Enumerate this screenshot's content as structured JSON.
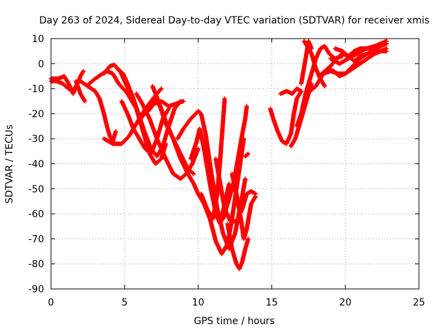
{
  "chart_data": {
    "type": "scatter",
    "title": "Day 263 of 2024, Sidereal Day-to-day VTEC variation (SDTVAR) for receiver xmis",
    "xlabel": "GPS time / hours",
    "ylabel": "SDTVAR / TECUs",
    "xlim": [
      0,
      25
    ],
    "ylim": [
      -90,
      10
    ],
    "xticks": [
      0,
      5,
      10,
      15,
      20,
      25
    ],
    "yticks": [
      10,
      0,
      -10,
      -20,
      -30,
      -40,
      -50,
      -60,
      -70,
      -80,
      -90
    ],
    "grid": true,
    "marker": "+",
    "color": "#ff0000",
    "series": [
      {
        "values": [
          [
            0.0,
            -7
          ],
          [
            0.4,
            -7
          ],
          [
            0.8,
            -8
          ],
          [
            1.2,
            -10
          ],
          [
            1.5,
            -11
          ],
          [
            1.8,
            -8
          ],
          [
            2.0,
            -5
          ],
          [
            2.2,
            -3
          ]
        ]
      },
      {
        "values": [
          [
            0.0,
            -6
          ],
          [
            0.5,
            -6
          ],
          [
            0.9,
            -5
          ],
          [
            1.2,
            -8
          ],
          [
            1.5,
            -12
          ],
          [
            1.7,
            -9
          ]
        ]
      },
      {
        "values": [
          [
            1.7,
            -7
          ],
          [
            2.0,
            -12
          ],
          [
            2.3,
            -15
          ]
        ]
      },
      {
        "values": [
          [
            2.0,
            -7
          ],
          [
            2.5,
            -9
          ],
          [
            3.0,
            -11
          ],
          [
            3.3,
            -14
          ],
          [
            3.6,
            -20
          ],
          [
            3.8,
            -25
          ],
          [
            4.0,
            -29
          ],
          [
            4.2,
            -31
          ],
          [
            4.4,
            -27
          ]
        ]
      },
      {
        "values": [
          [
            2.6,
            -8
          ],
          [
            3.0,
            -6
          ],
          [
            3.5,
            -4
          ],
          [
            3.8,
            -3
          ],
          [
            4.2,
            -4
          ],
          [
            4.6,
            -8
          ],
          [
            5.2,
            -12
          ],
          [
            5.8,
            -18
          ],
          [
            6.3,
            -28
          ],
          [
            6.7,
            -36
          ],
          [
            7.1,
            -40
          ],
          [
            7.5,
            -38
          ],
          [
            7.8,
            -32
          ]
        ]
      },
      {
        "values": [
          [
            3.6,
            -30
          ],
          [
            4.2,
            -32
          ],
          [
            4.8,
            -32
          ],
          [
            5.3,
            -29
          ],
          [
            5.8,
            -24
          ],
          [
            6.3,
            -19
          ],
          [
            6.8,
            -15
          ],
          [
            7.2,
            -12
          ],
          [
            7.5,
            -10
          ]
        ]
      },
      {
        "values": [
          [
            3.6,
            -4
          ],
          [
            4.0,
            -1
          ],
          [
            4.3,
            -0.5
          ],
          [
            4.7,
            -3
          ],
          [
            5.0,
            -7
          ],
          [
            5.4,
            -12
          ]
        ]
      },
      {
        "values": [
          [
            4.5,
            -2
          ],
          [
            4.9,
            -4
          ],
          [
            5.2,
            -8
          ],
          [
            5.6,
            -14
          ],
          [
            6.0,
            -21
          ],
          [
            6.4,
            -28
          ],
          [
            6.8,
            -34
          ],
          [
            7.2,
            -37
          ],
          [
            7.6,
            -33
          ],
          [
            8.0,
            -25
          ],
          [
            8.4,
            -18
          ],
          [
            8.8,
            -15
          ]
        ]
      },
      {
        "values": [
          [
            4.8,
            -15
          ],
          [
            5.2,
            -20
          ],
          [
            5.6,
            -26
          ],
          [
            6.0,
            -30
          ],
          [
            6.4,
            -34
          ],
          [
            6.8,
            -36
          ],
          [
            7.2,
            -30
          ],
          [
            7.6,
            -22
          ],
          [
            8.0,
            -18
          ]
        ]
      },
      {
        "values": [
          [
            5.8,
            -12
          ],
          [
            6.2,
            -16
          ],
          [
            6.7,
            -22
          ],
          [
            7.2,
            -30
          ],
          [
            7.8,
            -38
          ],
          [
            8.3,
            -44
          ],
          [
            8.8,
            -46
          ],
          [
            9.2,
            -44
          ],
          [
            9.6,
            -40
          ],
          [
            10.0,
            -34
          ]
        ]
      },
      {
        "values": [
          [
            6.1,
            -22
          ],
          [
            6.6,
            -18
          ],
          [
            7.0,
            -14
          ],
          [
            7.4,
            -17
          ],
          [
            7.8,
            -24
          ],
          [
            8.3,
            -30
          ],
          [
            8.8,
            -36
          ],
          [
            9.3,
            -42
          ],
          [
            9.7,
            -44
          ]
        ]
      },
      {
        "values": [
          [
            6.9,
            -9
          ],
          [
            7.3,
            -15
          ],
          [
            7.8,
            -23
          ],
          [
            8.3,
            -30
          ],
          [
            8.8,
            -38
          ],
          [
            9.3,
            -44
          ],
          [
            9.7,
            -48
          ],
          [
            10.0,
            -52
          ],
          [
            10.4,
            -56
          ],
          [
            10.8,
            -62
          ],
          [
            11.2,
            -71
          ],
          [
            11.6,
            -76
          ],
          [
            12.0,
            -72
          ],
          [
            12.3,
            -62
          ],
          [
            12.6,
            -50
          ],
          [
            12.9,
            -38
          ],
          [
            13.1,
            -30
          ]
        ]
      },
      {
        "values": [
          [
            6.6,
            -19
          ],
          [
            7.0,
            -16
          ],
          [
            7.5,
            -15
          ],
          [
            8.0,
            -17
          ],
          [
            8.5,
            -16
          ],
          [
            9.0,
            -15
          ]
        ]
      },
      {
        "values": [
          [
            8.6,
            -30
          ],
          [
            9.0,
            -26
          ],
          [
            9.5,
            -22
          ],
          [
            10.0,
            -19
          ],
          [
            10.2,
            -20
          ],
          [
            10.5,
            -28
          ],
          [
            10.9,
            -44
          ],
          [
            11.3,
            -58
          ],
          [
            11.7,
            -68
          ],
          [
            12.1,
            -74
          ],
          [
            12.5,
            -68
          ],
          [
            12.9,
            -56
          ],
          [
            13.2,
            -46
          ]
        ]
      },
      {
        "values": [
          [
            9.5,
            -38
          ],
          [
            9.9,
            -31
          ],
          [
            10.1,
            -26
          ],
          [
            10.4,
            -34
          ],
          [
            10.8,
            -48
          ],
          [
            11.2,
            -60
          ],
          [
            11.5,
            -64
          ],
          [
            11.8,
            -56
          ],
          [
            12.1,
            -48
          ]
        ]
      },
      {
        "values": [
          [
            10.2,
            -52
          ],
          [
            10.6,
            -58
          ],
          [
            11.0,
            -62
          ],
          [
            11.3,
            -52
          ],
          [
            11.5,
            -38
          ],
          [
            11.7,
            -22
          ],
          [
            11.8,
            -14
          ]
        ]
      },
      {
        "values": [
          [
            11.2,
            -38
          ],
          [
            11.5,
            -48
          ],
          [
            11.8,
            -58
          ],
          [
            12.2,
            -63
          ],
          [
            12.6,
            -63
          ],
          [
            13.0,
            -58
          ],
          [
            13.3,
            -52
          ],
          [
            13.6,
            -51
          ],
          [
            13.9,
            -52
          ]
        ]
      },
      {
        "values": [
          [
            11.7,
            -62
          ],
          [
            12.0,
            -56
          ],
          [
            12.4,
            -48
          ],
          [
            12.7,
            -38
          ],
          [
            13.0,
            -28
          ],
          [
            13.2,
            -22
          ],
          [
            13.3,
            -17
          ]
        ]
      },
      {
        "values": [
          [
            12.3,
            -44
          ],
          [
            12.6,
            -52
          ],
          [
            12.9,
            -62
          ],
          [
            13.1,
            -70
          ],
          [
            13.3,
            -66
          ],
          [
            13.6,
            -56
          ],
          [
            13.9,
            -53
          ]
        ]
      },
      {
        "values": [
          [
            12.0,
            -64
          ],
          [
            12.3,
            -74
          ],
          [
            12.6,
            -80
          ],
          [
            12.8,
            -82
          ],
          [
            13.0,
            -79
          ],
          [
            13.2,
            -74
          ],
          [
            13.4,
            -70
          ]
        ]
      },
      {
        "values": [
          [
            13.2,
            -37
          ],
          [
            13.4,
            -36
          ]
        ]
      },
      {
        "values": [
          [
            14.9,
            -18
          ],
          [
            15.1,
            -22
          ],
          [
            15.4,
            -27
          ],
          [
            15.7,
            -31
          ],
          [
            16.0,
            -32
          ],
          [
            16.3,
            -28
          ],
          [
            16.5,
            -20
          ],
          [
            16.7,
            -14
          ],
          [
            17.0,
            -11
          ]
        ]
      },
      {
        "values": [
          [
            16.3,
            -33
          ],
          [
            16.6,
            -30
          ],
          [
            16.9,
            -24
          ],
          [
            17.2,
            -18
          ],
          [
            17.5,
            -12
          ],
          [
            17.7,
            -8
          ]
        ]
      },
      {
        "values": [
          [
            15.6,
            -12
          ],
          [
            16.0,
            -11
          ],
          [
            16.4,
            -12
          ],
          [
            16.7,
            -10
          ],
          [
            17.0,
            -11
          ]
        ]
      },
      {
        "values": [
          [
            16.7,
            -25
          ],
          [
            17.0,
            -20
          ],
          [
            17.3,
            -12
          ],
          [
            17.6,
            -6
          ],
          [
            17.8,
            -2
          ],
          [
            18.0,
            2
          ],
          [
            18.3,
            6
          ],
          [
            18.6,
            7
          ],
          [
            18.9,
            4
          ],
          [
            19.3,
            2
          ],
          [
            19.8,
            3
          ]
        ]
      },
      {
        "values": [
          [
            17.0,
            -8
          ],
          [
            17.3,
            2
          ],
          [
            17.5,
            9
          ],
          [
            17.7,
            6
          ]
        ]
      },
      {
        "values": [
          [
            17.2,
            9
          ],
          [
            17.5,
            6
          ],
          [
            17.7,
            4
          ],
          [
            18.0,
            -2
          ],
          [
            18.3,
            -6
          ],
          [
            18.6,
            -9
          ]
        ]
      },
      {
        "values": [
          [
            17.6,
            -11
          ],
          [
            18.0,
            -9
          ],
          [
            18.4,
            -5
          ],
          [
            18.8,
            -2
          ],
          [
            19.2,
            -3
          ]
        ]
      },
      {
        "values": [
          [
            18.2,
            -5
          ],
          [
            18.6,
            -3
          ],
          [
            19.0,
            -1
          ],
          [
            19.4,
            2
          ],
          [
            19.8,
            4
          ],
          [
            20.2,
            3
          ],
          [
            20.6,
            1
          ],
          [
            21.0,
            3
          ],
          [
            21.5,
            4
          ],
          [
            22.0,
            5
          ],
          [
            22.8,
            5
          ]
        ]
      },
      {
        "values": [
          [
            18.5,
            -4
          ],
          [
            19.0,
            -3
          ],
          [
            19.5,
            -4
          ],
          [
            20.0,
            -4
          ],
          [
            20.5,
            -2
          ],
          [
            21.0,
            0
          ],
          [
            21.5,
            2
          ],
          [
            22.0,
            4
          ],
          [
            22.8,
            6
          ]
        ]
      },
      {
        "values": [
          [
            19.2,
            -3
          ],
          [
            19.6,
            -5
          ],
          [
            20.0,
            -4
          ],
          [
            20.5,
            -1
          ],
          [
            21.0,
            2
          ],
          [
            21.5,
            4
          ],
          [
            22.0,
            6
          ],
          [
            22.8,
            8
          ]
        ]
      },
      {
        "values": [
          [
            19.0,
            2
          ],
          [
            19.6,
            0
          ],
          [
            20.2,
            2
          ],
          [
            20.8,
            4
          ],
          [
            21.4,
            6
          ],
          [
            22.0,
            7
          ],
          [
            22.8,
            9
          ]
        ]
      },
      {
        "values": [
          [
            19.3,
            6
          ],
          [
            19.8,
            5
          ],
          [
            20.2,
            3
          ],
          [
            20.6,
            5
          ],
          [
            21.0,
            6
          ],
          [
            21.5,
            6
          ],
          [
            22.0,
            7
          ],
          [
            22.8,
            8
          ]
        ]
      }
    ]
  }
}
